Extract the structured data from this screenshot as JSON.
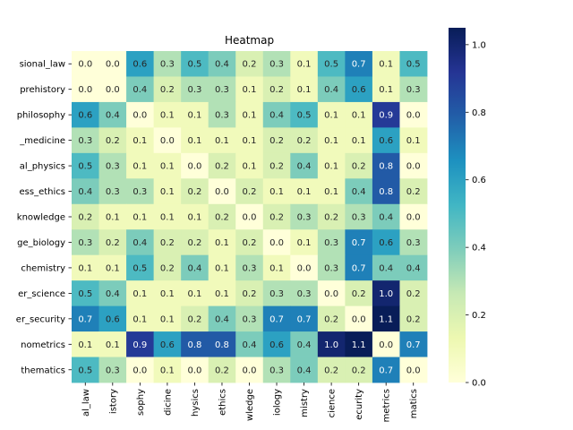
{
  "chart_data": {
    "type": "heatmap",
    "title": "Heatmap",
    "rows": [
      "sional_law",
      "prehistory",
      "philosophy",
      "_medicine",
      "al_physics",
      "ess_ethics",
      "knowledge",
      "ge_biology",
      "chemistry",
      "er_science",
      "er_security",
      "nometrics",
      "thematics"
    ],
    "columns": [
      "al_law",
      "istory",
      "sophy",
      "dicine",
      "hysics",
      "ethics",
      "wledge",
      "iology",
      "mistry",
      "cience",
      "ecurity",
      "metrics",
      "matics"
    ],
    "values": [
      [
        0.0,
        0.0,
        0.6,
        0.3,
        0.5,
        0.4,
        0.2,
        0.3,
        0.1,
        0.5,
        0.7,
        0.1,
        0.5
      ],
      [
        0.0,
        0.0,
        0.4,
        0.2,
        0.3,
        0.3,
        0.1,
        0.2,
        0.1,
        0.4,
        0.6,
        0.1,
        0.3
      ],
      [
        0.6,
        0.4,
        0.0,
        0.1,
        0.1,
        0.3,
        0.1,
        0.4,
        0.5,
        0.1,
        0.1,
        0.9,
        0.0
      ],
      [
        0.3,
        0.2,
        0.1,
        0.0,
        0.1,
        0.1,
        0.1,
        0.2,
        0.2,
        0.1,
        0.1,
        0.6,
        0.1
      ],
      [
        0.5,
        0.3,
        0.1,
        0.1,
        0.0,
        0.2,
        0.1,
        0.2,
        0.4,
        0.1,
        0.2,
        0.8,
        0.0
      ],
      [
        0.4,
        0.3,
        0.3,
        0.1,
        0.2,
        0.0,
        0.2,
        0.1,
        0.1,
        0.1,
        0.4,
        0.8,
        0.2
      ],
      [
        0.2,
        0.1,
        0.1,
        0.1,
        0.1,
        0.2,
        0.0,
        0.2,
        0.3,
        0.2,
        0.3,
        0.4,
        0.0
      ],
      [
        0.3,
        0.2,
        0.4,
        0.2,
        0.2,
        0.1,
        0.2,
        0.0,
        0.1,
        0.3,
        0.7,
        0.6,
        0.3
      ],
      [
        0.1,
        0.1,
        0.5,
        0.2,
        0.4,
        0.1,
        0.3,
        0.1,
        0.0,
        0.3,
        0.7,
        0.4,
        0.4
      ],
      [
        0.5,
        0.4,
        0.1,
        0.1,
        0.1,
        0.1,
        0.2,
        0.3,
        0.3,
        0.0,
        0.2,
        1.0,
        0.2
      ],
      [
        0.7,
        0.6,
        0.1,
        0.1,
        0.2,
        0.4,
        0.3,
        0.7,
        0.7,
        0.2,
        0.0,
        1.1,
        0.2
      ],
      [
        0.1,
        0.1,
        0.9,
        0.6,
        0.8,
        0.8,
        0.4,
        0.6,
        0.4,
        1.0,
        1.1,
        0.0,
        0.7
      ],
      [
        0.5,
        0.3,
        0.0,
        0.1,
        0.0,
        0.2,
        0.0,
        0.3,
        0.4,
        0.2,
        0.2,
        0.7,
        0.0
      ]
    ],
    "colorbar": {
      "range": [
        0.0,
        1.05
      ],
      "ticks": [
        "0.0",
        "0.2",
        "0.4",
        "0.6",
        "0.8",
        "1.0"
      ],
      "colormap": "YlGnBu"
    },
    "annotated": true,
    "grid": false
  }
}
